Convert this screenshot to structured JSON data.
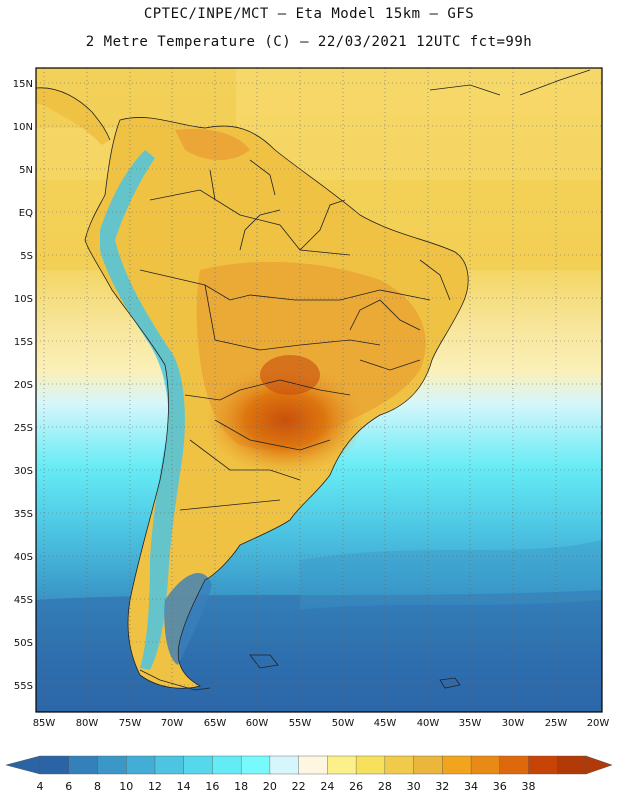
{
  "header": {
    "line1": "CPTEC/INPE/MCT  –   Eta Model 15km  –  GFS",
    "line2": "2 Metre Temperature (C) – 22/03/2021 12UTC fct=99h"
  },
  "map": {
    "lat_labels": [
      "15N",
      "10N",
      "5N",
      "EQ",
      "5S",
      "10S",
      "15S",
      "20S",
      "25S",
      "30S",
      "35S",
      "40S",
      "45S",
      "50S",
      "55S"
    ],
    "lon_labels": [
      "85W",
      "80W",
      "75W",
      "70W",
      "65W",
      "60W",
      "55W",
      "50W",
      "45W",
      "40W",
      "35W",
      "30W",
      "25W",
      "20W"
    ]
  },
  "colorbar": {
    "labels": [
      "4",
      "6",
      "8",
      "10",
      "12",
      "14",
      "16",
      "18",
      "20",
      "22",
      "24",
      "26",
      "28",
      "30",
      "32",
      "34",
      "36",
      "38"
    ],
    "colors": [
      "#2b64a6",
      "#3480ba",
      "#3a97c8",
      "#42aed6",
      "#4cc4e2",
      "#55d8ec",
      "#63ecf6",
      "#78fafc",
      "#d6f6fb",
      "#fdf6e0",
      "#fbf08a",
      "#f7e15c",
      "#f0cb4a",
      "#eab63c",
      "#f2a51c",
      "#e88a15",
      "#de680c",
      "#c84406",
      "#b23a08"
    ],
    "low_arrow_color": "#2b64a6",
    "high_arrow_color": "#b23a08"
  }
}
